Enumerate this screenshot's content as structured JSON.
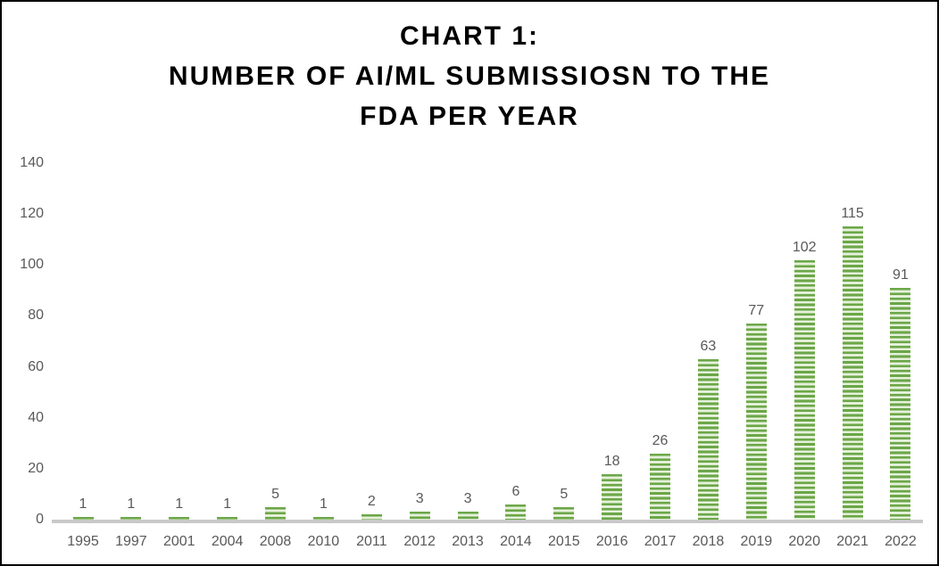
{
  "title": {
    "lines": [
      "CHART 1:",
      "NUMBER OF AI/ML SUBMISSIOSN TO THE",
      "FDA PER YEAR"
    ]
  },
  "chart_data": {
    "type": "bar",
    "title": "CHART 1: NUMBER OF AI/ML SUBMISSIOSN TO THE FDA PER YEAR",
    "categories": [
      "1995",
      "1997",
      "2001",
      "2004",
      "2008",
      "2010",
      "2011",
      "2012",
      "2013",
      "2014",
      "2015",
      "2016",
      "2017",
      "2018",
      "2019",
      "2020",
      "2021",
      "2022"
    ],
    "values": [
      1,
      1,
      1,
      1,
      5,
      1,
      2,
      3,
      3,
      6,
      5,
      18,
      26,
      63,
      77,
      102,
      115,
      91
    ],
    "xlabel": "",
    "ylabel": "",
    "ylim": [
      0,
      140
    ],
    "yticks": [
      0,
      20,
      40,
      60,
      80,
      100,
      120,
      140
    ],
    "grid": false,
    "legend": false,
    "data_labels": true,
    "bar_pattern": "horizontal-stripes",
    "colors": {
      "bar_stripe_green": "#6ba748",
      "bar_stripe_light": "#f1f7eb",
      "axis_line": "#c9c9c9",
      "tick_label_text": "#595959",
      "title_text": "#000000",
      "border": "#000000"
    }
  }
}
